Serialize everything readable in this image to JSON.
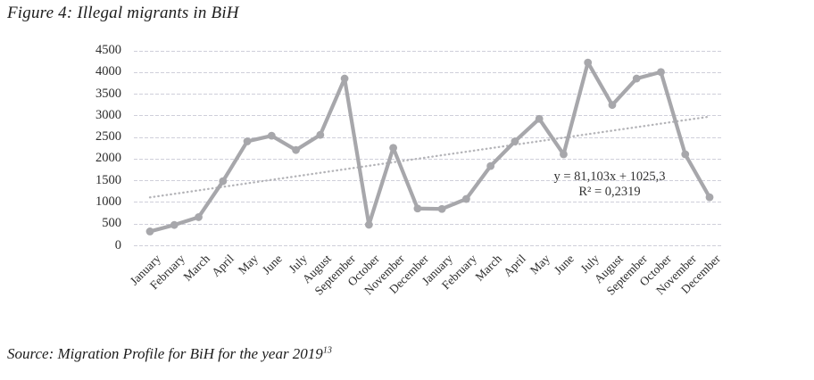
{
  "figure": {
    "title": "Figure 4: Illegal migrants in BiH",
    "source": "Source: Migration Profile for BiH for the year 2019",
    "source_footnote": "13"
  },
  "chart_data": {
    "type": "line",
    "title": "Figure 4: Illegal migrants in BiH",
    "categories": [
      "January",
      "February",
      "March",
      "April",
      "May",
      "June",
      "July",
      "August",
      "September",
      "October",
      "November",
      "December",
      "January",
      "February",
      "March",
      "April",
      "May",
      "June",
      "July",
      "August",
      "September",
      "October",
      "November",
      "December"
    ],
    "values": [
      320,
      470,
      650,
      1480,
      2400,
      2530,
      2200,
      2550,
      3850,
      475,
      2250,
      850,
      840,
      1070,
      1830,
      2400,
      2920,
      2100,
      4220,
      3240,
      3850,
      4000,
      2100,
      1110
    ],
    "xlabel": "",
    "ylabel": "",
    "ylim": [
      0,
      4500
    ],
    "ytick_step": 500,
    "y_ticks": [
      0,
      500,
      1000,
      1500,
      2000,
      2500,
      3000,
      3500,
      4000,
      4500
    ],
    "grid": true,
    "legend": "none",
    "trendline": {
      "equation": "y = 81,103x + 1025,3",
      "r_squared": "R² = 0,2319",
      "slope": 81.103,
      "intercept": 1025.3
    },
    "colors": {
      "series_line": "#a7a7ab",
      "marker": "#a7a7ab",
      "trendline": "#b4b4b8",
      "gridline": "#cfcfda",
      "axis_text": "#2b2b2b"
    }
  }
}
